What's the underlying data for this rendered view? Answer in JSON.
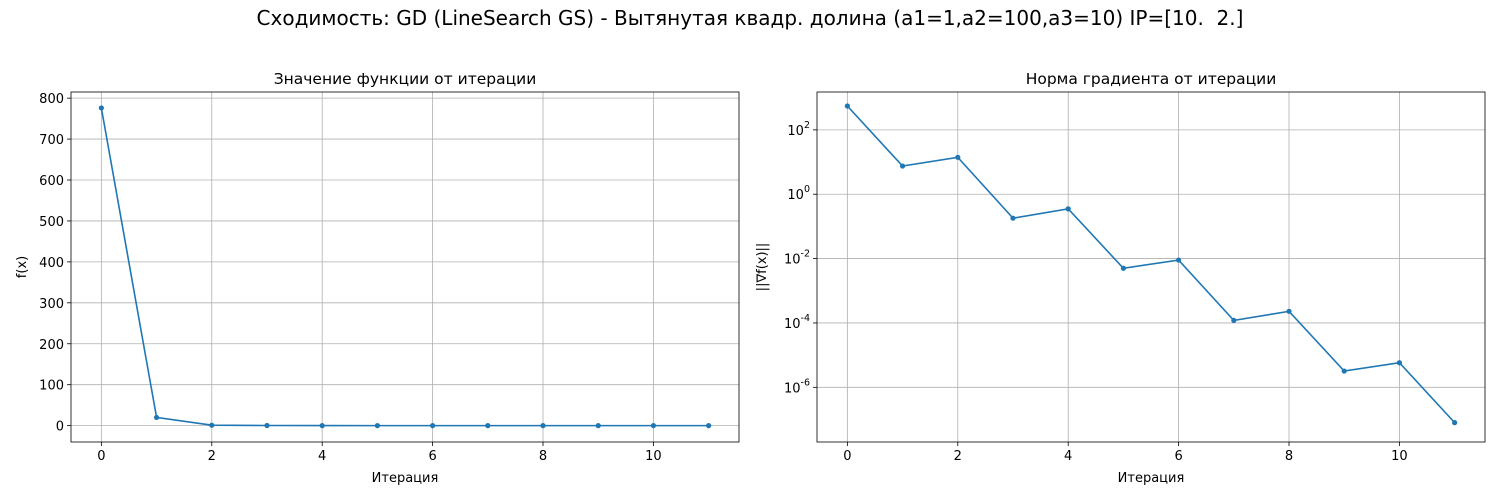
{
  "figure": {
    "suptitle": "Сходимость: GD (LineSearch GS) - Вытянутая квадр. долина (a1=1,a2=100,a3=10) IP=[10.  2.]"
  },
  "colors": {
    "line": "#1f77b4",
    "grid": "#b0b0b0",
    "axes": "#000000"
  },
  "chart_data": [
    {
      "type": "line",
      "title": "Значение функции от итерации",
      "xlabel": "Итерация",
      "ylabel": "f(x)",
      "yscale": "linear",
      "grid": true,
      "xlim": [
        -0.55,
        11.55
      ],
      "ylim": [
        -40,
        815
      ],
      "xticks": [
        0,
        2,
        4,
        6,
        8,
        10
      ],
      "xtick_labels": [
        "0",
        "2",
        "4",
        "6",
        "8",
        "10"
      ],
      "yticks": [
        0,
        100,
        200,
        300,
        400,
        500,
        600,
        700,
        800
      ],
      "ytick_labels": [
        "0",
        "100",
        "200",
        "300",
        "400",
        "500",
        "600",
        "700",
        "800"
      ],
      "series": [
        {
          "x": [
            0,
            1,
            2,
            3,
            4,
            5,
            6,
            7,
            8,
            9,
            10,
            11
          ],
          "y": [
            776,
            20,
            1,
            0.3,
            0.05,
            0.01,
            0,
            0,
            0,
            0,
            0,
            0
          ]
        }
      ]
    },
    {
      "type": "line",
      "title": "Норма градиента от итерации",
      "xlabel": "Итерация",
      "ylabel": "||∇f(x)||",
      "yscale": "log",
      "grid": true,
      "xlim": [
        -0.55,
        11.55
      ],
      "ylim": [
        2e-08,
        1500
      ],
      "xticks": [
        0,
        2,
        4,
        6,
        8,
        10
      ],
      "xtick_labels": [
        "0",
        "2",
        "4",
        "6",
        "8",
        "10"
      ],
      "yticks": [
        1e-06,
        0.0001,
        0.01,
        1,
        100
      ],
      "ytick_labels": [
        "10^-6",
        "10^-4",
        "10^-2",
        "10^0",
        "10^2"
      ],
      "series": [
        {
          "x": [
            0,
            1,
            2,
            3,
            4,
            5,
            6,
            7,
            8,
            9,
            10,
            11
          ],
          "y": [
            550,
            7.5,
            14,
            0.18,
            0.35,
            0.005,
            0.009,
            0.00012,
            0.00023,
            3.2e-06,
            5.8e-06,
            8e-08
          ]
        }
      ]
    }
  ]
}
